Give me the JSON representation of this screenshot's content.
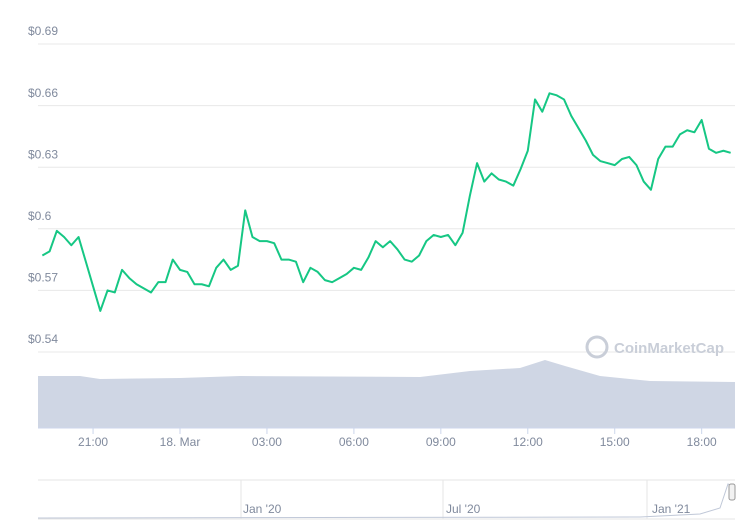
{
  "chart_data": {
    "type": "line",
    "series": [
      {
        "name": "Price",
        "color": "#16c784",
        "values": [
          0.587,
          0.589,
          0.599,
          0.596,
          0.592,
          0.596,
          0.584,
          0.572,
          0.56,
          0.57,
          0.569,
          0.58,
          0.576,
          0.573,
          0.571,
          0.569,
          0.574,
          0.574,
          0.585,
          0.58,
          0.579,
          0.573,
          0.573,
          0.572,
          0.581,
          0.585,
          0.58,
          0.582,
          0.609,
          0.596,
          0.594,
          0.594,
          0.593,
          0.585,
          0.585,
          0.584,
          0.574,
          0.581,
          0.579,
          0.575,
          0.574,
          0.576,
          0.578,
          0.581,
          0.58,
          0.586,
          0.594,
          0.591,
          0.594,
          0.59,
          0.585,
          0.584,
          0.587,
          0.594,
          0.597,
          0.596,
          0.597,
          0.592,
          0.598,
          0.616,
          0.632,
          0.623,
          0.627,
          0.624,
          0.623,
          0.621,
          0.629,
          0.638,
          0.663,
          0.657,
          0.666,
          0.665,
          0.663,
          0.655,
          0.649,
          0.643,
          0.636,
          0.633,
          0.632,
          0.631,
          0.634,
          0.635,
          0.631,
          0.623,
          0.619,
          0.634,
          0.64,
          0.64,
          0.646,
          0.648,
          0.647,
          0.653,
          0.639,
          0.637,
          0.638,
          0.637
        ]
      }
    ],
    "x": [
      19.25,
      19.5,
      19.75,
      20,
      20.25,
      20.5,
      20.75,
      21,
      21.25,
      21.5,
      21.75,
      22,
      22.25,
      22.5,
      22.75,
      23,
      23.25,
      23.5,
      23.75,
      24,
      24.25,
      24.5,
      24.75,
      25,
      25.25,
      25.5,
      25.75,
      26,
      26.25,
      26.5,
      26.75,
      27,
      27.25,
      27.5,
      27.75,
      28,
      28.25,
      28.5,
      28.75,
      29,
      29.25,
      29.5,
      29.75,
      30,
      30.25,
      30.5,
      30.75,
      31,
      31.25,
      31.5,
      31.75,
      32,
      32.25,
      32.5,
      32.75,
      33,
      33.25,
      33.5,
      33.75,
      34,
      34.25,
      34.5,
      34.75,
      35,
      35.25,
      35.5,
      35.75,
      36,
      36.25,
      36.5,
      36.75,
      37,
      37.25,
      37.5,
      37.75,
      38,
      38.25,
      38.5,
      38.75,
      39,
      39.25,
      39.5,
      39.75,
      40,
      40.25,
      40.5,
      40.75,
      41,
      41.25,
      41.5,
      41.75,
      42,
      42.25,
      42.5,
      42.75,
      43
    ],
    "xlim": [
      19.1,
      43.15
    ],
    "xticks": [
      {
        "value": 21,
        "label": "21:00"
      },
      {
        "value": 24,
        "label": "18. Mar"
      },
      {
        "value": 27,
        "label": "03:00"
      },
      {
        "value": 30,
        "label": "06:00"
      },
      {
        "value": 33,
        "label": "09:00"
      },
      {
        "value": 36,
        "label": "12:00"
      },
      {
        "value": 39,
        "label": "15:00"
      },
      {
        "value": 42,
        "label": "18:00"
      }
    ],
    "ylim": [
      0.54,
      0.69
    ],
    "yticks": [
      {
        "value": 0.54,
        "label": "$0.54"
      },
      {
        "value": 0.57,
        "label": "$0.57"
      },
      {
        "value": 0.6,
        "label": "$0.6"
      },
      {
        "value": 0.63,
        "label": "$0.63"
      },
      {
        "value": 0.66,
        "label": "$0.66"
      },
      {
        "value": 0.69,
        "label": "$0.69"
      }
    ],
    "grid": true,
    "watermark": "CoinMarketCap",
    "navigator_labels": [
      "Jan '20",
      "Jul '20",
      "Jan '21"
    ]
  }
}
